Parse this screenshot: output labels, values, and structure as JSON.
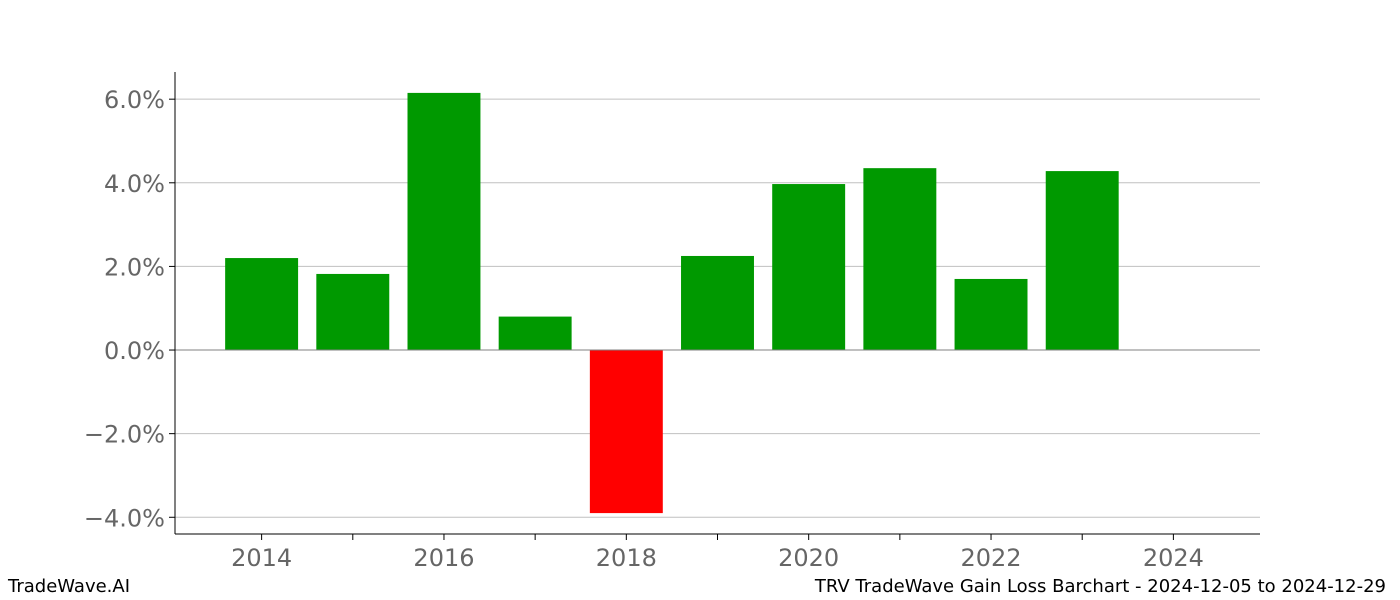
{
  "footer": {
    "brand": "TradeWave.AI",
    "caption": "TRV TradeWave Gain Loss Barchart - 2024-12-05 to 2024-12-29"
  },
  "colors": {
    "gain": "#009900",
    "loss": "#ff0000",
    "grid": "#c0c0c0",
    "axis": "#000000",
    "zero_line": "#808080",
    "tick_text": "#666666"
  },
  "chart_data": {
    "type": "bar",
    "x": [
      2014,
      2015,
      2016,
      2017,
      2018,
      2019,
      2020,
      2021,
      2022,
      2023
    ],
    "values": [
      2.2,
      1.82,
      6.15,
      0.8,
      -3.9,
      2.25,
      3.97,
      4.35,
      1.7,
      4.28
    ],
    "y_unit": "%",
    "xlim": [
      2013.05,
      2024.95
    ],
    "ylim": [
      -4.4,
      6.65
    ],
    "x_ticks": [
      2014,
      2016,
      2018,
      2020,
      2022,
      2024
    ],
    "x_tick_labels": [
      "2014",
      "2016",
      "2018",
      "2020",
      "2022",
      "2024"
    ],
    "y_ticks": [
      -4,
      -2,
      0,
      2,
      4,
      6
    ],
    "y_tick_labels": [
      "−4.0%",
      "−2.0%",
      "0.0%",
      "2.0%",
      "4.0%",
      "6.0%"
    ],
    "grid": true,
    "title": "",
    "xlabel": "",
    "ylabel": ""
  }
}
